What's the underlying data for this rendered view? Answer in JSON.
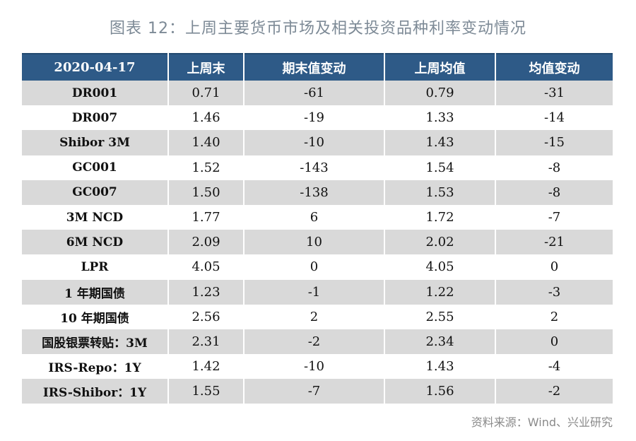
{
  "title": "图表 12：上周主要货币市场及相关投资品种利率变动情况",
  "table": {
    "headers": [
      "2020-04-17",
      "上周末",
      "期末值变动",
      "上周均值",
      "均值变动"
    ],
    "rows": [
      [
        "DR001",
        "0.71",
        "-61",
        "0.79",
        "-31"
      ],
      [
        "DR007",
        "1.46",
        "-19",
        "1.33",
        "-14"
      ],
      [
        "Shibor 3M",
        "1.40",
        "-10",
        "1.43",
        "-15"
      ],
      [
        "GC001",
        "1.52",
        "-143",
        "1.54",
        "-8"
      ],
      [
        "GC007",
        "1.50",
        "-138",
        "1.53",
        "-8"
      ],
      [
        "3M NCD",
        "1.77",
        "6",
        "1.72",
        "-7"
      ],
      [
        "6M NCD",
        "2.09",
        "10",
        "2.02",
        "-21"
      ],
      [
        "LPR",
        "4.05",
        "0",
        "4.05",
        "0"
      ],
      [
        "1 年期国债",
        "1.23",
        "-1",
        "1.22",
        "-3"
      ],
      [
        "10 年期国债",
        "2.56",
        "2",
        "2.55",
        "2"
      ],
      [
        "国股银票转贴：3M",
        "2.31",
        "-2",
        "2.34",
        "0"
      ],
      [
        "IRS-Repo：1Y",
        "1.42",
        "-10",
        "1.43",
        "-4"
      ],
      [
        "IRS-Shibor：1Y",
        "1.55",
        "-7",
        "1.56",
        "-2"
      ]
    ]
  },
  "source": "资料来源：Wind、兴业研究",
  "colors": {
    "header_bg": "#2e5a87",
    "row_shade": "#d9d9d9",
    "title_text": "#7d8a96",
    "source_text": "#8a8a8a"
  }
}
